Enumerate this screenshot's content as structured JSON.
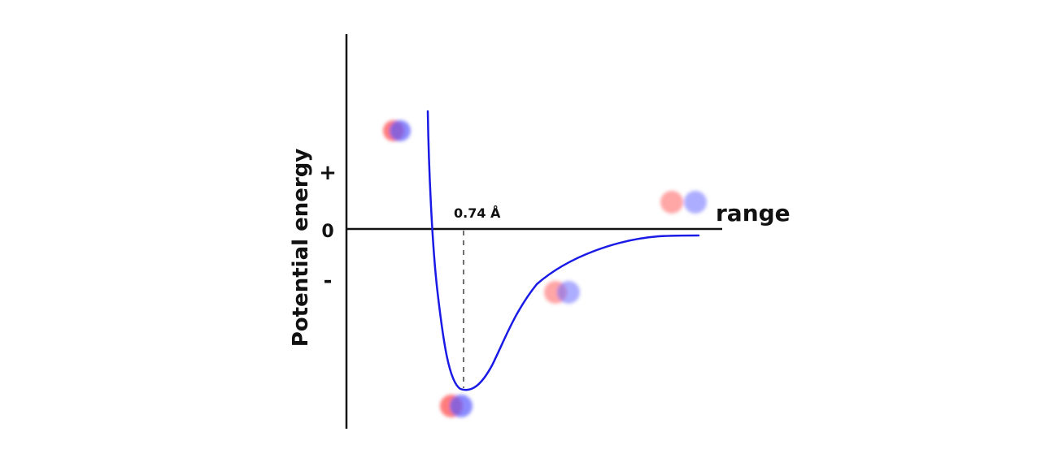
{
  "diagram": {
    "y_axis_label": "Potential energy",
    "x_axis_label": "range",
    "tick_plus": "+",
    "tick_zero": "0",
    "tick_minus": "-",
    "bond_length_label": "0.74 Å"
  },
  "colors": {
    "curve": "#1a1ae6",
    "axis": "#111111",
    "atom_red": "#ff5a5a",
    "atom_blue": "#5a5aff"
  },
  "chart_data": {
    "type": "line",
    "title": "",
    "xlabel": "range",
    "ylabel": "Potential energy",
    "annotations": [
      "0.74 Å"
    ],
    "y_ticks": [
      "+",
      "0",
      "-"
    ],
    "series": [
      {
        "values_description": "Morse-type potential: steep repulsive wall at short range, minimum at 0.74 Å, approaching 0 at long range",
        "x": [
          0.45,
          0.55,
          0.65,
          0.74,
          0.9,
          1.2,
          1.6,
          2.2,
          3.0
        ],
        "y": [
          1.0,
          0.0,
          -1.4,
          -2.8,
          -2.2,
          -1.2,
          -0.6,
          -0.25,
          -0.1
        ]
      }
    ],
    "grid": false,
    "legend": "none"
  }
}
